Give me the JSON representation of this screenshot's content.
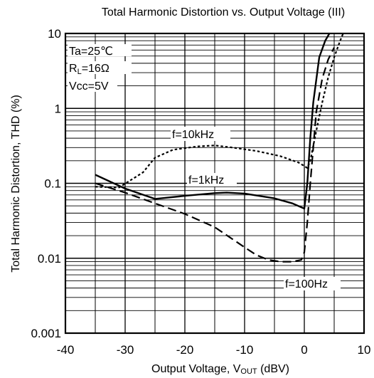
{
  "chart_data": {
    "type": "line",
    "title": "Total Harmonic Distortion vs. Output Voltage (III)",
    "xlabel_prefix": "Output Voltage, V",
    "xlabel_sub": "OUT",
    "xlabel_suffix": " (dBV)",
    "ylabel": "Total Harmonic Distortion, THD (%)",
    "xlim": [
      -40,
      10
    ],
    "ylim": [
      0.001,
      10
    ],
    "yscale": "log",
    "grid": true,
    "xticks": [
      -40,
      -30,
      -20,
      -10,
      0,
      10
    ],
    "xtick_labels": [
      "-40",
      "-30",
      "-20",
      "-10",
      "0",
      "10"
    ],
    "yticks": [
      0.001,
      0.01,
      0.1,
      1,
      10
    ],
    "ytick_labels": [
      "0.001",
      "0.01",
      "0.1",
      "1",
      "10"
    ],
    "conditions": [
      "Ta=25℃",
      "R",
      "L",
      "=16Ω",
      "Vcc=5V"
    ],
    "series": [
      {
        "name": "f=10kHz",
        "style": "dotted",
        "color": "#000000",
        "x": [
          -35,
          -31,
          -27,
          -25,
          -22,
          -18,
          -15,
          -12,
          -8,
          -4,
          -1,
          0,
          0.5,
          1,
          2,
          3,
          4,
          5,
          6,
          6.5
        ],
        "y": [
          0.09,
          0.088,
          0.14,
          0.22,
          0.28,
          0.31,
          0.32,
          0.3,
          0.27,
          0.23,
          0.19,
          0.17,
          0.16,
          0.2,
          0.5,
          1.2,
          2.6,
          4.8,
          8.0,
          10
        ]
      },
      {
        "name": "f=1kHz",
        "style": "solid",
        "color": "#000000",
        "x": [
          -35,
          -30,
          -25,
          -20,
          -15,
          -13,
          -10,
          -5,
          -2,
          0,
          0.5,
          1,
          1.5,
          2.5,
          3.5,
          4.2
        ],
        "y": [
          0.13,
          0.085,
          0.062,
          0.068,
          0.074,
          0.075,
          0.073,
          0.063,
          0.054,
          0.046,
          0.1,
          0.4,
          1.2,
          4.8,
          8.0,
          10
        ]
      },
      {
        "name": "f=100Hz",
        "style": "dashed",
        "color": "#000000",
        "x": [
          -35,
          -30,
          -25,
          -20,
          -15,
          -10,
          -8,
          -6,
          -4,
          -2,
          -0.5,
          0,
          0.5,
          1,
          1.5,
          2,
          3,
          4,
          5
        ],
        "y": [
          0.1,
          0.075,
          0.054,
          0.039,
          0.026,
          0.014,
          0.011,
          0.0095,
          0.009,
          0.009,
          0.0095,
          0.012,
          0.03,
          0.1,
          0.3,
          0.9,
          2.5,
          4.5,
          6.5
        ]
      }
    ]
  }
}
